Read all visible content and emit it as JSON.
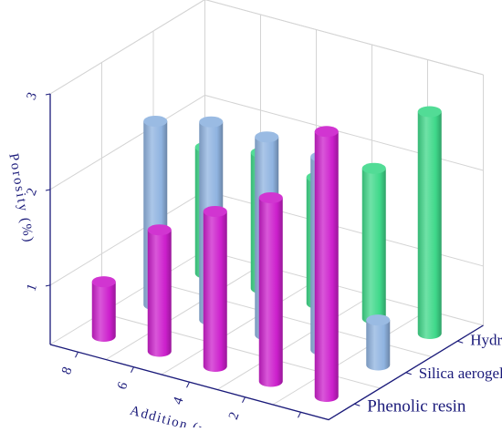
{
  "chart_data": {
    "type": "bar3d",
    "title": "",
    "xlabel": "Addition (wt%)",
    "ylabel": "",
    "zlabel": "Porosity (%)",
    "x_categories": [
      "0",
      "2",
      "4",
      "6",
      "8"
    ],
    "y_categories": [
      "Phenolic resin",
      "Silica aerogel",
      "Hydrogen peroxide"
    ],
    "z_ticks": [
      "1",
      "2",
      "3"
    ],
    "zlim": [
      0.38,
      3.0
    ],
    "grid": true,
    "colors": {
      "Phenolic resin": "#cc1fcc",
      "Silica aerogel": "#8fb3e0",
      "Hydrogen peroxide": "#3fd88a"
    },
    "series": [
      {
        "name": "Phenolic resin",
        "values": [
          3.15,
          2.3,
          2.0,
          1.65,
          0.95
        ]
      },
      {
        "name": "Silica aerogel",
        "values": [
          0.85,
          2.4,
          2.45,
          2.45,
          2.3
        ]
      },
      {
        "name": "Hydrogen peroxide",
        "values": [
          2.7,
          1.95,
          1.7,
          1.8,
          1.7
        ]
      }
    ]
  }
}
